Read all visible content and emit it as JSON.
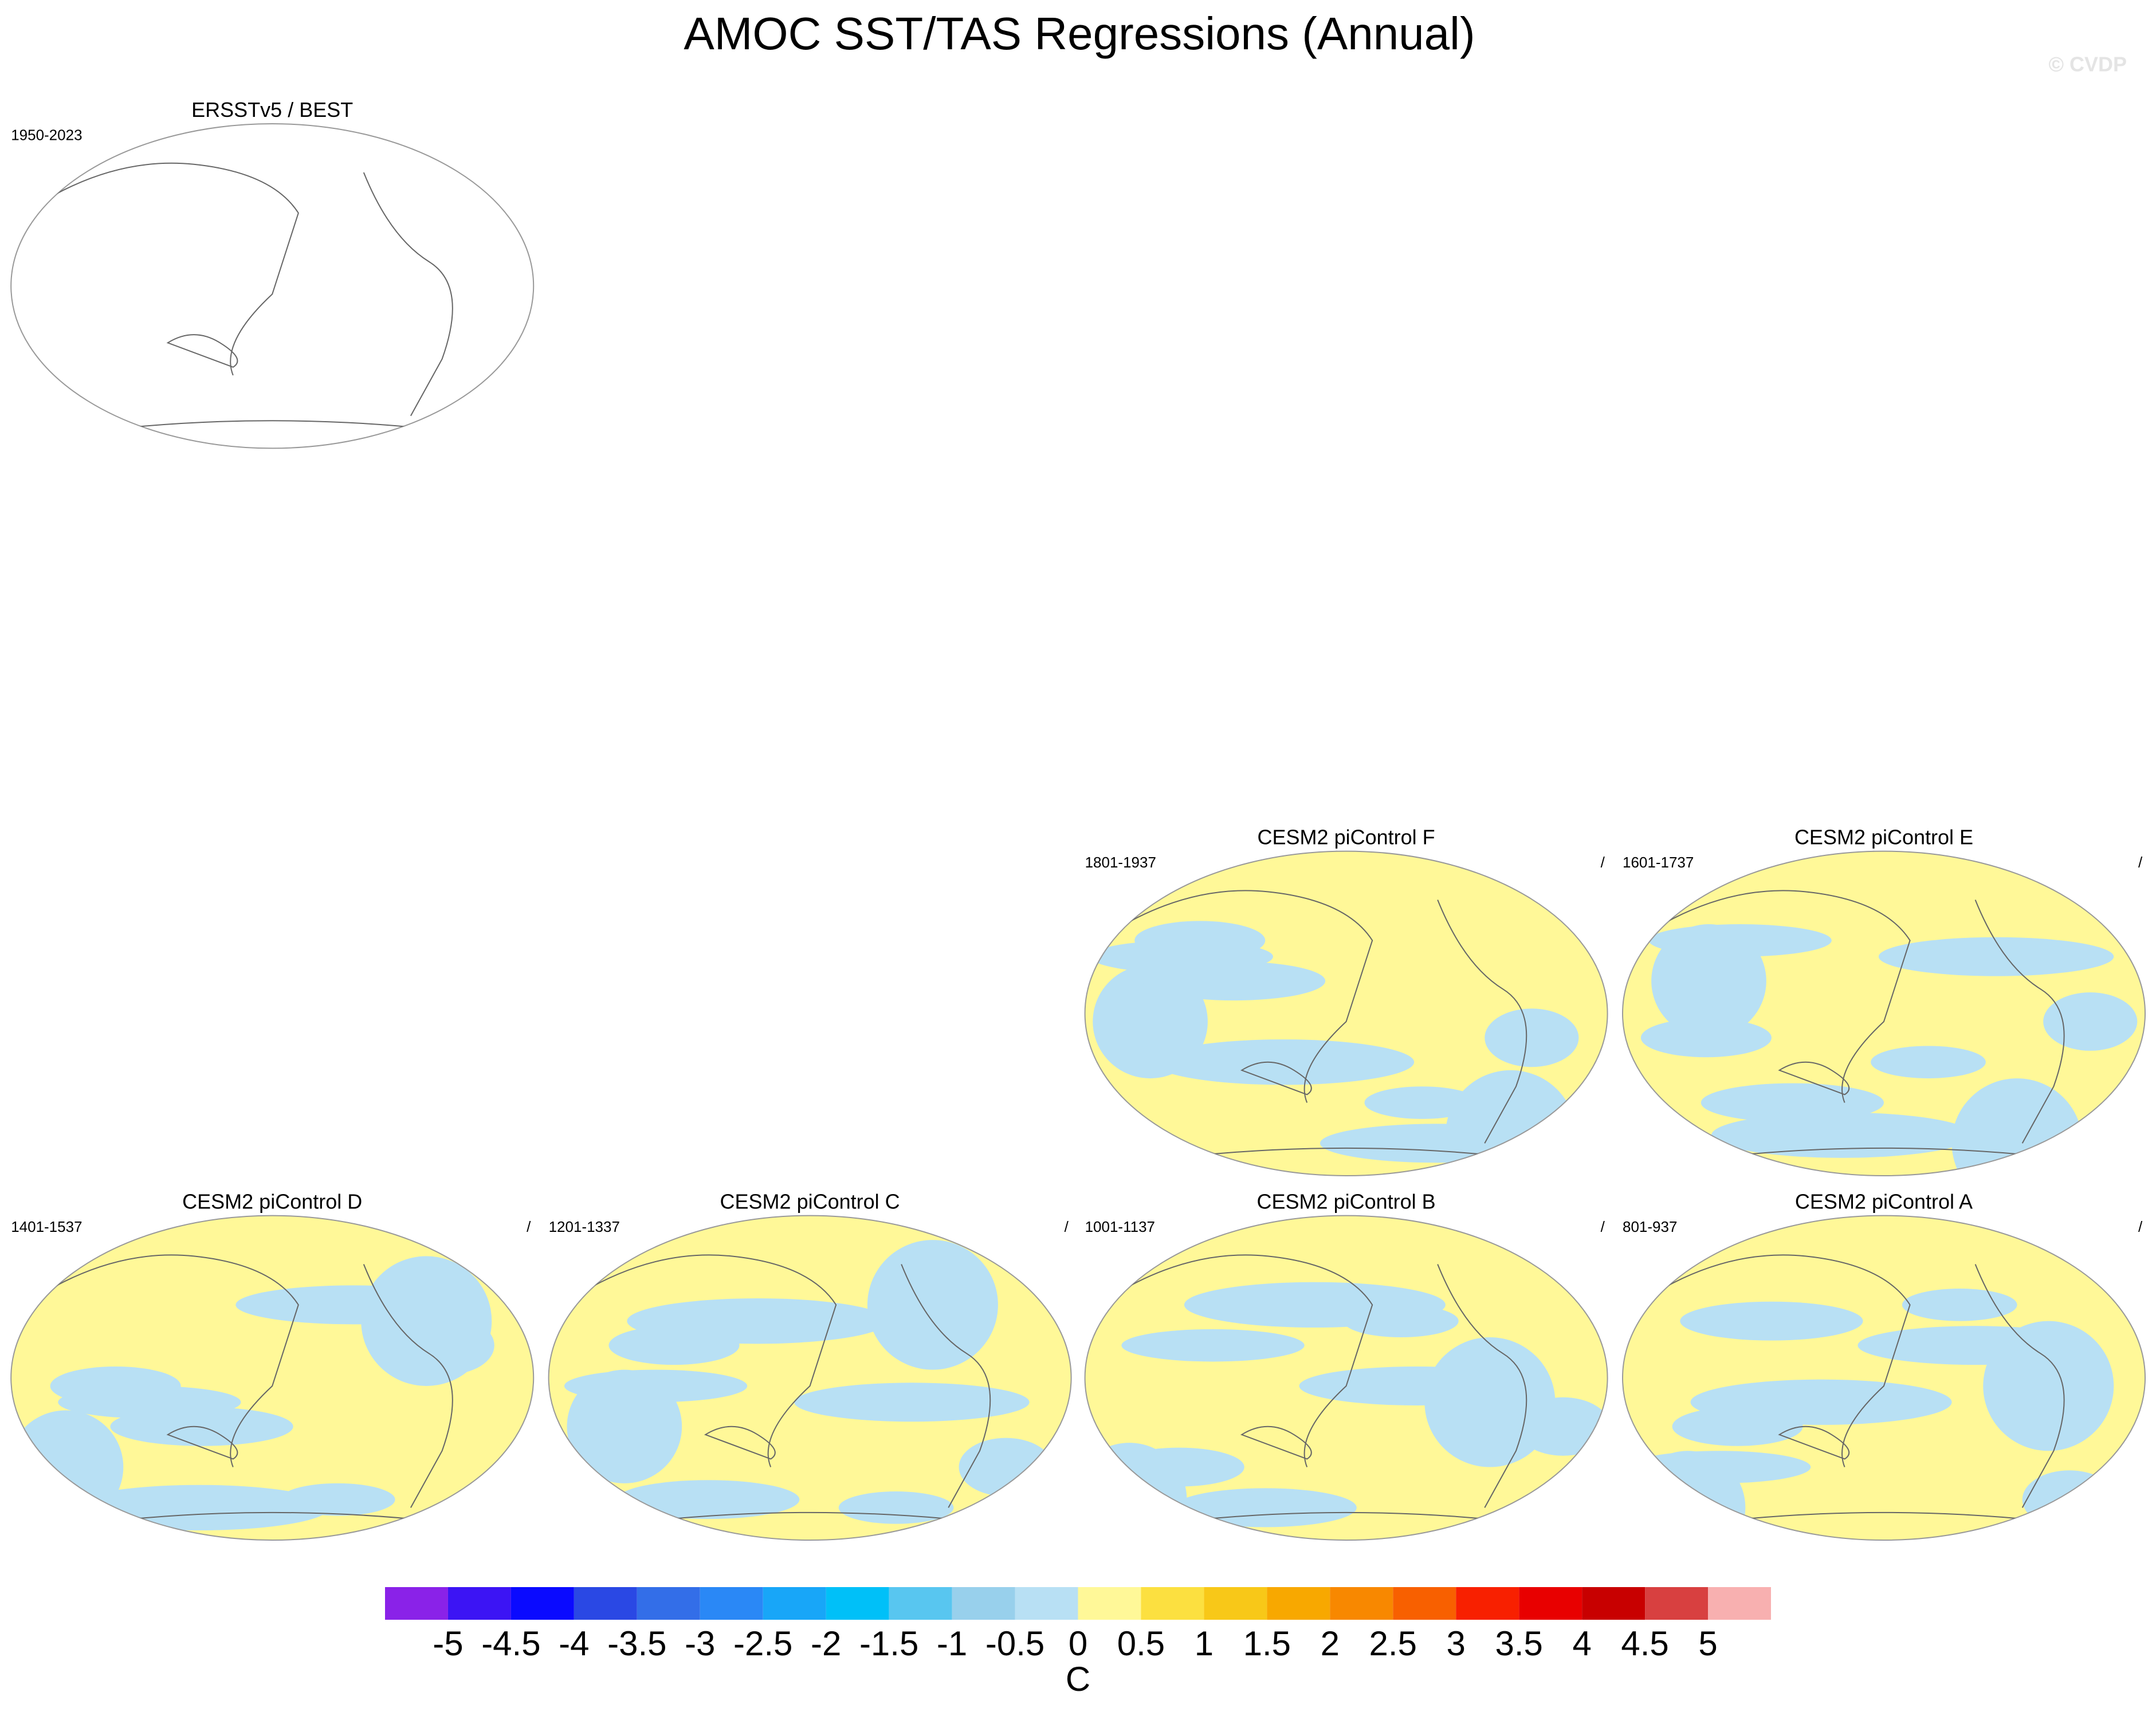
{
  "title": "AMOC SST/TAS Regressions (Annual)",
  "watermark": "© CVDP",
  "panels": [
    {
      "title": "ERSSTv5 / BEST",
      "period": "1950-2023"
    },
    {
      "title": "CESM2 piControl F",
      "period": "1801-1937",
      "note": "/"
    },
    {
      "title": "CESM2 piControl E",
      "period": "1601-1737",
      "note": "/"
    },
    {
      "title": "CESM2 piControl D",
      "period": "1401-1537",
      "note": "/"
    },
    {
      "title": "CESM2 piControl C",
      "period": "1201-1337",
      "note": "/"
    },
    {
      "title": "CESM2 piControl B",
      "period": "1001-1137",
      "note": "/"
    },
    {
      "title": "CESM2 piControl A",
      "period": "801-937",
      "note": "/"
    }
  ],
  "colorbar": {
    "levels": [
      -5,
      -4.5,
      -4,
      -3.5,
      -3,
      -2.5,
      -2,
      -1.5,
      -1,
      -0.5,
      0,
      0.5,
      1,
      1.5,
      2,
      2.5,
      3,
      3.5,
      4,
      4.5,
      5
    ],
    "colors": [
      "#8a22e8",
      "#3c14f4",
      "#0a0aff",
      "#2a48e4",
      "#336ee8",
      "#2a88f6",
      "#18a6f8",
      "#00c0f8",
      "#58c6f0",
      "#98d0ec",
      "#b8e0f4",
      "#fff898",
      "#fce040",
      "#f8c818",
      "#f8a800",
      "#f88800",
      "#f86000",
      "#f82000",
      "#e80000",
      "#c80000",
      "#d84040",
      "#f8b0b0"
    ],
    "label": "C"
  }
}
